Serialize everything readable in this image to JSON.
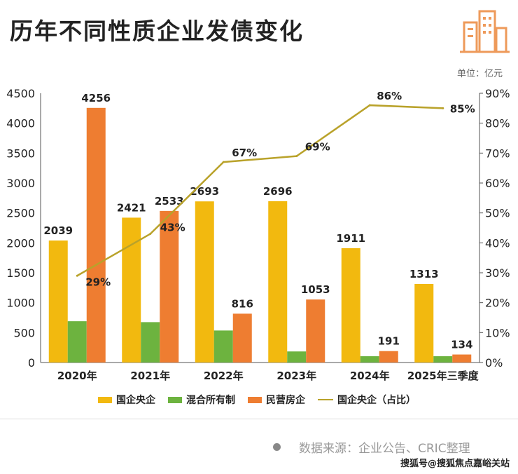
{
  "title": "历年不同性质企业发债变化",
  "unit": "单位：亿元",
  "source": "数据来源：企业公告、CRIC整理",
  "credit": "搜狐号@搜狐焦点嘉峪关站",
  "logo_icon": "building-icon",
  "chart_data": {
    "type": "bar",
    "categories": [
      "2020年",
      "2021年",
      "2022年",
      "2023年",
      "2024年",
      "2025年三季度"
    ],
    "series": [
      {
        "name": "国企央企",
        "color": "#F2B90F",
        "values": [
          2039,
          2421,
          2693,
          2696,
          1911,
          1313
        ],
        "labels": true
      },
      {
        "name": "混合所有制",
        "color": "#6DB33F",
        "values": [
          690,
          675,
          535,
          185,
          105,
          105
        ],
        "labels": false
      },
      {
        "name": "民营房企",
        "color": "#EE7D31",
        "values": [
          4256,
          2533,
          816,
          1053,
          191,
          134
        ],
        "labels": true
      }
    ],
    "line_series": {
      "name": "国企央企（占比）",
      "color": "#B9A22A",
      "values": [
        29,
        43,
        67,
        69,
        86,
        85
      ],
      "unit": "%"
    },
    "y_left": {
      "min": 0,
      "max": 4500,
      "ticks": [
        0,
        500,
        1000,
        1500,
        2000,
        2500,
        3000,
        3500,
        4000,
        4500
      ]
    },
    "y_right": {
      "min": 0,
      "max": 90,
      "ticks": [
        "0%",
        "10%",
        "20%",
        "30%",
        "40%",
        "50%",
        "60%",
        "70%",
        "80%",
        "90%"
      ]
    },
    "grid": false,
    "legend_position": "bottom"
  }
}
